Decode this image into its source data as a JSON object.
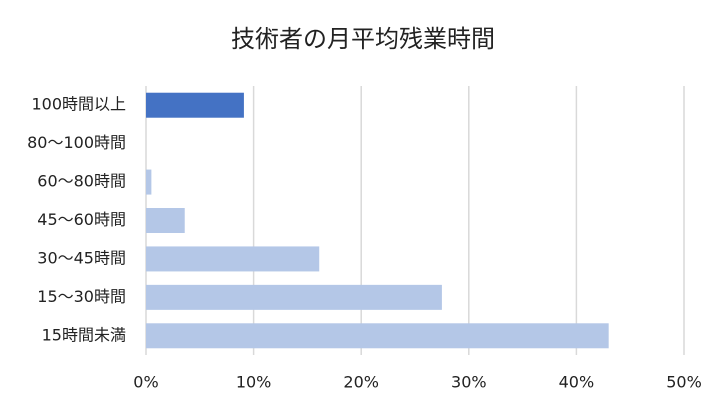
{
  "chart_data": {
    "type": "bar",
    "orientation": "horizontal",
    "title": "技術者の月平均残業時間",
    "categories": [
      "100時間以上",
      "80～100時間",
      "60～80時間",
      "45～60時間",
      "30～45時間",
      "15～30時間",
      "15時間未満"
    ],
    "values": [
      9.1,
      0,
      0.5,
      3.6,
      16.1,
      27.5,
      43.0
    ],
    "colors": [
      "#4472c4",
      "#b4c7e7",
      "#b4c7e7",
      "#b4c7e7",
      "#b4c7e7",
      "#b4c7e7",
      "#b4c7e7"
    ],
    "xlim": [
      0,
      50
    ],
    "xticks": [
      {
        "value": 0,
        "label": "0%"
      },
      {
        "value": 10,
        "label": "10%"
      },
      {
        "value": 20,
        "label": "20%"
      },
      {
        "value": 30,
        "label": "30%"
      },
      {
        "value": 40,
        "label": "40%"
      },
      {
        "value": 50,
        "label": "50%"
      }
    ],
    "grid": true
  }
}
